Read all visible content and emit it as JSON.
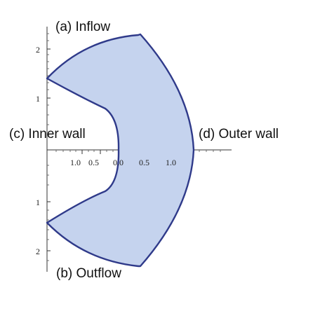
{
  "labels": {
    "inflow": "(a) Inflow",
    "outflow": "(b) Outflow",
    "inner_wall": "(c) Inner wall",
    "outer_wall": "(d) Outer wall"
  },
  "x_ticks": [
    "1.0",
    "0.5",
    "0.0",
    "0.5",
    "1.0"
  ],
  "y_ticks": [
    "2",
    "1",
    "1",
    "2"
  ],
  "colors": {
    "fill": "#c5d3ee",
    "edge": "#2f3a8a",
    "axis": "#333333"
  }
}
